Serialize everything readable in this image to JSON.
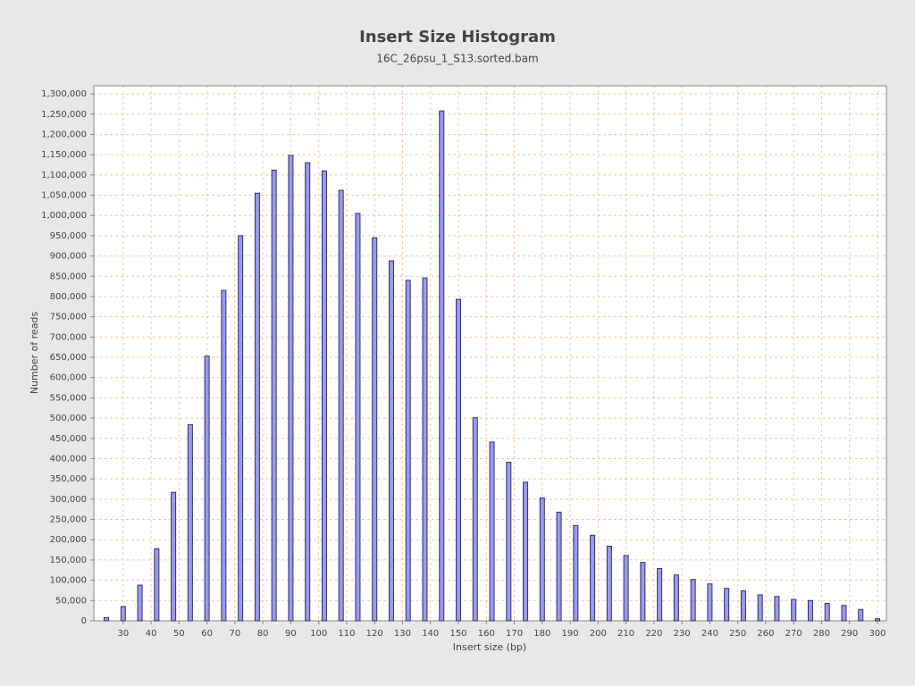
{
  "chart_data": {
    "type": "bar",
    "title": "Insert Size Histogram",
    "subtitle": "16C_26psu_1_S13.sorted.bam",
    "x_label": "Insert size (bp)",
    "y_label": "Number of reads",
    "color": "#9999ee",
    "edge_color": "#333366",
    "grid": true,
    "x": [
      24,
      30,
      36,
      42,
      48,
      54,
      60,
      66,
      72,
      78,
      84,
      90,
      96,
      102,
      108,
      114,
      120,
      126,
      132,
      138,
      144,
      150,
      156,
      162,
      168,
      174,
      180,
      186,
      192,
      198,
      204,
      210,
      216,
      222,
      228,
      234,
      240,
      246,
      252,
      258,
      264,
      270,
      276,
      282,
      288,
      294,
      300
    ],
    "values": [
      8000,
      35000,
      88000,
      178000,
      317000,
      484000,
      653000,
      815000,
      950000,
      1055000,
      1112000,
      1148000,
      1130000,
      1110000,
      1062000,
      1005000,
      945000,
      888000,
      840000,
      846000,
      1258000,
      793000,
      501000,
      441000,
      391000,
      342000,
      303000,
      268000,
      235000,
      211000,
      184000,
      161000,
      144000,
      129000,
      113000,
      102000,
      91000,
      80000,
      74000,
      64000,
      60000,
      53000,
      50000,
      43000,
      38000,
      28000,
      5000
    ],
    "xlim": [
      19.5,
      303.2
    ],
    "xticks": [
      30,
      40,
      50,
      60,
      70,
      80,
      90,
      100,
      110,
      120,
      130,
      140,
      150,
      160,
      170,
      180,
      190,
      200,
      210,
      220,
      230,
      240,
      250,
      260,
      270,
      280,
      290,
      300
    ],
    "ylim": [
      0,
      1320000
    ],
    "yticks": [
      0,
      {
        "value": 50000,
        "label": "50,000"
      },
      {
        "value": 100000,
        "label": "100,000"
      },
      {
        "value": 150000,
        "label": "150,000"
      },
      {
        "value": 200000,
        "label": "200,000"
      },
      {
        "value": 250000,
        "label": "250,000"
      },
      {
        "value": 300000,
        "label": "300,000"
      },
      {
        "value": 350000,
        "label": "350,000"
      },
      {
        "value": 400000,
        "label": "400,000"
      },
      {
        "value": 450000,
        "label": "450,000"
      },
      {
        "value": 500000,
        "label": "500,000"
      },
      {
        "value": 550000,
        "label": "550,000"
      },
      {
        "value": 600000,
        "label": "600,000"
      },
      {
        "value": 650000,
        "label": "650,000"
      },
      {
        "value": 700000,
        "label": "700,000"
      },
      {
        "value": 750000,
        "label": "750,000"
      },
      {
        "value": 800000,
        "label": "800,000"
      },
      {
        "value": 850000,
        "label": "850,000"
      },
      {
        "value": 900000,
        "label": "900,000"
      },
      {
        "value": 950000,
        "label": "950,000"
      },
      {
        "value": 1000000,
        "label": "1,000,000"
      },
      {
        "value": 1050000,
        "label": "1,050,000"
      },
      {
        "value": 1100000,
        "label": "1,100,000"
      },
      {
        "value": 1150000,
        "label": "1,150,000"
      },
      {
        "value": 1200000,
        "label": "1,200,000"
      },
      {
        "value": 1250000,
        "label": "1,250,000"
      },
      {
        "value": 1300000,
        "label": "1,300,000"
      }
    ]
  }
}
